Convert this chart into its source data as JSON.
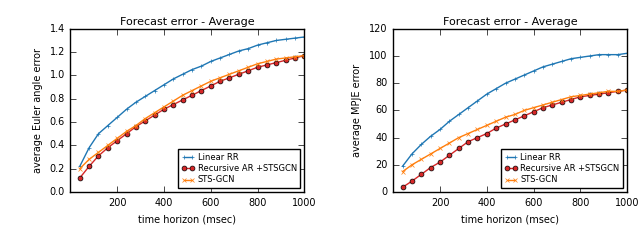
{
  "title": "Forecast error - Average",
  "xlabel": "time horizon (msec)",
  "ylabel_left": "average Euler angle error",
  "ylabel_right": "average MPJE error",
  "x_max": 1000,
  "legend": [
    "Linear RR",
    "Recursive AR +STSGCN",
    "STS-GCN"
  ],
  "colors": [
    "#1f77b4",
    "#d62728",
    "#ff7f0e"
  ],
  "markers": [
    "+",
    "o",
    "x"
  ],
  "left": {
    "ylim": [
      0,
      1.4
    ],
    "yticks": [
      0,
      0.2,
      0.4,
      0.6,
      0.8,
      1.0,
      1.2,
      1.4
    ],
    "xticks": [
      200,
      400,
      600,
      800,
      1000
    ],
    "linear_rr": {
      "x": [
        40,
        80,
        120,
        160,
        200,
        240,
        280,
        320,
        360,
        400,
        440,
        480,
        520,
        560,
        600,
        640,
        680,
        720,
        760,
        800,
        840,
        880,
        920,
        960,
        1000
      ],
      "y": [
        0.22,
        0.38,
        0.5,
        0.57,
        0.64,
        0.71,
        0.77,
        0.82,
        0.87,
        0.92,
        0.97,
        1.01,
        1.05,
        1.08,
        1.12,
        1.15,
        1.18,
        1.21,
        1.23,
        1.26,
        1.28,
        1.3,
        1.31,
        1.32,
        1.33
      ]
    },
    "recursive_ar": {
      "x": [
        40,
        80,
        120,
        160,
        200,
        240,
        280,
        320,
        360,
        400,
        440,
        480,
        520,
        560,
        600,
        640,
        680,
        720,
        760,
        800,
        840,
        880,
        920,
        960,
        1000
      ],
      "y": [
        0.12,
        0.22,
        0.31,
        0.38,
        0.44,
        0.5,
        0.56,
        0.61,
        0.66,
        0.71,
        0.75,
        0.79,
        0.83,
        0.87,
        0.91,
        0.95,
        0.98,
        1.01,
        1.04,
        1.07,
        1.09,
        1.11,
        1.13,
        1.15,
        1.17
      ]
    },
    "stsgcn": {
      "x": [
        40,
        80,
        120,
        160,
        200,
        240,
        280,
        320,
        360,
        400,
        440,
        480,
        520,
        560,
        600,
        640,
        680,
        720,
        760,
        800,
        840,
        880,
        920,
        960,
        1000
      ],
      "y": [
        0.2,
        0.28,
        0.34,
        0.4,
        0.46,
        0.52,
        0.57,
        0.63,
        0.68,
        0.73,
        0.78,
        0.83,
        0.87,
        0.91,
        0.95,
        0.98,
        1.01,
        1.04,
        1.07,
        1.1,
        1.12,
        1.14,
        1.15,
        1.16,
        1.17
      ]
    }
  },
  "right": {
    "ylim": [
      0,
      120
    ],
    "yticks": [
      0,
      20,
      40,
      60,
      80,
      100,
      120
    ],
    "xticks": [
      200,
      400,
      600,
      800,
      1000
    ],
    "linear_rr": {
      "x": [
        40,
        80,
        120,
        160,
        200,
        240,
        280,
        320,
        360,
        400,
        440,
        480,
        520,
        560,
        600,
        640,
        680,
        720,
        760,
        800,
        840,
        880,
        920,
        960,
        1000
      ],
      "y": [
        19,
        28,
        35,
        41,
        46,
        52,
        57,
        62,
        67,
        72,
        76,
        80,
        83,
        86,
        89,
        92,
        94,
        96,
        98,
        99,
        100,
        101,
        101,
        101,
        102
      ]
    },
    "recursive_ar": {
      "x": [
        40,
        80,
        120,
        160,
        200,
        240,
        280,
        320,
        360,
        400,
        440,
        480,
        520,
        560,
        600,
        640,
        680,
        720,
        760,
        800,
        840,
        880,
        920,
        960,
        1000
      ],
      "y": [
        3.5,
        8,
        13,
        18,
        22,
        27,
        32,
        37,
        40,
        43,
        47,
        50,
        53,
        56,
        59,
        62,
        64,
        66,
        68,
        70,
        71,
        72,
        73,
        74,
        75
      ]
    },
    "stsgcn": {
      "x": [
        40,
        80,
        120,
        160,
        200,
        240,
        280,
        320,
        360,
        400,
        440,
        480,
        520,
        560,
        600,
        640,
        680,
        720,
        760,
        800,
        840,
        880,
        920,
        960,
        1000
      ],
      "y": [
        15,
        20,
        24,
        28,
        32,
        36,
        40,
        43,
        46,
        49,
        52,
        55,
        57,
        60,
        62,
        64,
        66,
        68,
        70,
        71,
        72,
        73,
        74,
        74,
        75
      ]
    }
  }
}
